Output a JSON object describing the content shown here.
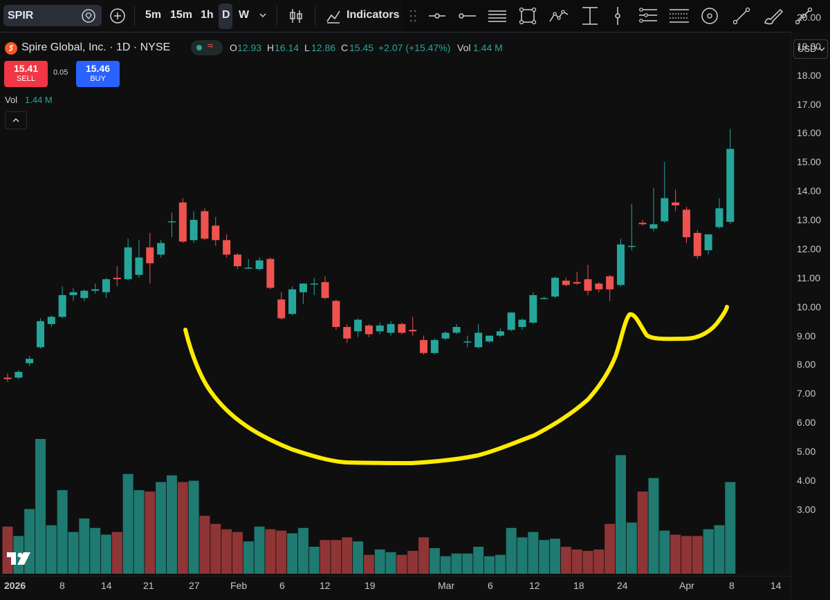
{
  "toolbar": {
    "symbol": "SPIR",
    "intervals": [
      "5m",
      "15m",
      "1h",
      "D",
      "W"
    ],
    "active_interval": "D",
    "indicators_label": "Indicators"
  },
  "legend": {
    "title": "Spire Global, Inc. · 1D · NYSE",
    "O_label": "O",
    "O": "12.93",
    "H_label": "H",
    "H": "16.14",
    "L_label": "L",
    "L": "12.86",
    "C_label": "C",
    "C": "15.45",
    "change": "+2.07 (+15.47%)",
    "vol_label": "Vol",
    "vol": "1.44 M"
  },
  "trade": {
    "sell_price": "15.41",
    "sell_label": "SELL",
    "spread": "0.05",
    "buy_price": "15.46",
    "buy_label": "BUY"
  },
  "volume_legend": {
    "label": "Vol",
    "value": "1.44 M"
  },
  "currency": "USD",
  "price_axis": [
    "20.00",
    "19.00",
    "18.00",
    "17.00",
    "16.00",
    "15.00",
    "14.00",
    "13.00",
    "12.00",
    "11.00",
    "10.00",
    "9.00",
    "8.00",
    "7.00",
    "6.00",
    "5.00",
    "4.00",
    "3.00"
  ],
  "date_axis": [
    "2026",
    "8",
    "14",
    "21",
    "27",
    "Feb",
    "6",
    "12",
    "19",
    "Mar",
    "6",
    "12",
    "18",
    "24",
    "Apr",
    "8",
    "14"
  ],
  "colors": {
    "up": "#26a69a",
    "down": "#ef5350",
    "up_vol": "#1f7a71",
    "down_vol": "#8f3535",
    "annotation": "#ffeb00",
    "sell_bg": "#f23645",
    "buy_bg": "#2962ff"
  },
  "chart_data": {
    "type": "candlestick",
    "y_axis_range": [
      3,
      20
    ],
    "secondary_axis": "volume (unlabeled)",
    "candles": [
      {
        "o": 7.55,
        "h": 7.7,
        "l": 7.4,
        "c": 7.5
      },
      {
        "o": 7.55,
        "h": 7.8,
        "l": 7.5,
        "c": 7.75
      },
      {
        "o": 8.05,
        "h": 8.3,
        "l": 7.95,
        "c": 8.2
      },
      {
        "o": 8.6,
        "h": 9.6,
        "l": 8.55,
        "c": 9.5
      },
      {
        "o": 9.4,
        "h": 9.7,
        "l": 9.3,
        "c": 9.65
      },
      {
        "o": 9.65,
        "h": 10.7,
        "l": 9.6,
        "c": 10.4
      },
      {
        "o": 10.4,
        "h": 10.65,
        "l": 10.2,
        "c": 10.5
      },
      {
        "o": 10.3,
        "h": 10.6,
        "l": 10.2,
        "c": 10.55
      },
      {
        "o": 10.55,
        "h": 10.8,
        "l": 10.45,
        "c": 10.6
      },
      {
        "o": 10.5,
        "h": 11.0,
        "l": 10.3,
        "c": 10.95
      },
      {
        "o": 11.0,
        "h": 11.4,
        "l": 10.7,
        "c": 10.95
      },
      {
        "o": 10.95,
        "h": 12.35,
        "l": 10.9,
        "c": 12.05
      },
      {
        "o": 11.1,
        "h": 12.3,
        "l": 11.0,
        "c": 11.7
      },
      {
        "o": 12.05,
        "h": 12.55,
        "l": 10.8,
        "c": 11.5
      },
      {
        "o": 11.8,
        "h": 12.3,
        "l": 11.7,
        "c": 12.2
      },
      {
        "o": 12.95,
        "h": 13.25,
        "l": 12.4,
        "c": 12.95
      },
      {
        "o": 13.6,
        "h": 13.75,
        "l": 12.2,
        "c": 12.25
      },
      {
        "o": 12.3,
        "h": 13.3,
        "l": 12.2,
        "c": 13.0
      },
      {
        "o": 13.3,
        "h": 13.4,
        "l": 12.3,
        "c": 12.35
      },
      {
        "o": 12.8,
        "h": 13.1,
        "l": 12.1,
        "c": 12.3
      },
      {
        "o": 12.3,
        "h": 12.5,
        "l": 11.7,
        "c": 11.8
      },
      {
        "o": 11.8,
        "h": 11.85,
        "l": 11.3,
        "c": 11.4
      },
      {
        "o": 11.35,
        "h": 11.65,
        "l": 11.3,
        "c": 11.35
      },
      {
        "o": 11.3,
        "h": 11.7,
        "l": 11.25,
        "c": 11.6
      },
      {
        "o": 11.65,
        "h": 11.7,
        "l": 10.6,
        "c": 10.65
      },
      {
        "o": 10.25,
        "h": 10.5,
        "l": 9.55,
        "c": 9.6
      },
      {
        "o": 9.75,
        "h": 10.7,
        "l": 9.7,
        "c": 10.6
      },
      {
        "o": 10.5,
        "h": 10.8,
        "l": 10.1,
        "c": 10.8
      },
      {
        "o": 10.8,
        "h": 11.0,
        "l": 10.4,
        "c": 10.8
      },
      {
        "o": 10.85,
        "h": 11.05,
        "l": 10.25,
        "c": 10.3
      },
      {
        "o": 10.2,
        "h": 10.25,
        "l": 9.2,
        "c": 9.3
      },
      {
        "o": 9.3,
        "h": 9.4,
        "l": 8.75,
        "c": 8.9
      },
      {
        "o": 9.15,
        "h": 9.6,
        "l": 8.95,
        "c": 9.55
      },
      {
        "o": 9.35,
        "h": 9.4,
        "l": 8.95,
        "c": 9.05
      },
      {
        "o": 9.15,
        "h": 9.45,
        "l": 9.05,
        "c": 9.35
      },
      {
        "o": 9.1,
        "h": 9.5,
        "l": 9.0,
        "c": 9.4
      },
      {
        "o": 9.4,
        "h": 9.45,
        "l": 9.05,
        "c": 9.1
      },
      {
        "o": 9.2,
        "h": 9.65,
        "l": 9.0,
        "c": 9.15
      },
      {
        "o": 8.85,
        "h": 9.0,
        "l": 8.35,
        "c": 8.4
      },
      {
        "o": 8.4,
        "h": 8.9,
        "l": 8.35,
        "c": 8.85
      },
      {
        "o": 8.9,
        "h": 9.15,
        "l": 8.85,
        "c": 9.1
      },
      {
        "o": 9.1,
        "h": 9.4,
        "l": 9.05,
        "c": 9.3
      },
      {
        "o": 8.8,
        "h": 9.0,
        "l": 8.6,
        "c": 8.8
      },
      {
        "o": 8.6,
        "h": 9.4,
        "l": 8.55,
        "c": 9.1
      },
      {
        "o": 8.8,
        "h": 9.0,
        "l": 8.75,
        "c": 9.0
      },
      {
        "o": 9.0,
        "h": 9.25,
        "l": 8.95,
        "c": 9.15
      },
      {
        "o": 9.2,
        "h": 9.8,
        "l": 9.15,
        "c": 9.8
      },
      {
        "o": 9.3,
        "h": 9.6,
        "l": 9.2,
        "c": 9.55
      },
      {
        "o": 9.45,
        "h": 10.5,
        "l": 9.4,
        "c": 10.4
      },
      {
        "o": 10.3,
        "h": 10.35,
        "l": 10.25,
        "c": 10.3
      },
      {
        "o": 10.35,
        "h": 11.05,
        "l": 10.3,
        "c": 11.0
      },
      {
        "o": 10.9,
        "h": 11.0,
        "l": 10.7,
        "c": 10.75
      },
      {
        "o": 10.85,
        "h": 11.2,
        "l": 10.75,
        "c": 10.8
      },
      {
        "o": 10.95,
        "h": 11.45,
        "l": 10.4,
        "c": 10.55
      },
      {
        "o": 10.8,
        "h": 10.85,
        "l": 10.5,
        "c": 10.6
      },
      {
        "o": 11.05,
        "h": 11.1,
        "l": 10.2,
        "c": 10.6
      },
      {
        "o": 10.75,
        "h": 12.35,
        "l": 10.7,
        "c": 12.15
      },
      {
        "o": 12.1,
        "h": 13.55,
        "l": 11.95,
        "c": 12.1
      },
      {
        "o": 12.9,
        "h": 13.0,
        "l": 12.8,
        "c": 12.85
      },
      {
        "o": 12.7,
        "h": 14.1,
        "l": 12.6,
        "c": 12.85
      },
      {
        "o": 12.95,
        "h": 15.0,
        "l": 12.9,
        "c": 13.75
      },
      {
        "o": 13.6,
        "h": 14.05,
        "l": 13.3,
        "c": 13.5
      },
      {
        "o": 13.35,
        "h": 13.45,
        "l": 12.2,
        "c": 12.4
      },
      {
        "o": 12.55,
        "h": 12.65,
        "l": 11.65,
        "c": 11.75
      },
      {
        "o": 11.95,
        "h": 12.5,
        "l": 11.8,
        "c": 12.5
      },
      {
        "o": 12.75,
        "h": 13.75,
        "l": 12.7,
        "c": 13.4
      },
      {
        "o": 12.93,
        "h": 16.14,
        "l": 12.86,
        "c": 15.45
      }
    ],
    "volume_relative": [
      0.35,
      0.28,
      0.48,
      1.0,
      0.36,
      0.62,
      0.31,
      0.41,
      0.34,
      0.29,
      0.31,
      0.74,
      0.62,
      0.61,
      0.68,
      0.73,
      0.68,
      0.69,
      0.43,
      0.37,
      0.33,
      0.31,
      0.24,
      0.35,
      0.33,
      0.32,
      0.3,
      0.34,
      0.2,
      0.25,
      0.25,
      0.27,
      0.24,
      0.14,
      0.18,
      0.16,
      0.14,
      0.17,
      0.27,
      0.19,
      0.13,
      0.15,
      0.15,
      0.2,
      0.13,
      0.14,
      0.34,
      0.27,
      0.31,
      0.25,
      0.26,
      0.2,
      0.18,
      0.17,
      0.18,
      0.37,
      0.88,
      0.38,
      0.61,
      0.71,
      0.32,
      0.29,
      0.28,
      0.28,
      0.33,
      0.36,
      0.68
    ],
    "annotation": "hand-drawn yellow cup-and-handle curve"
  }
}
